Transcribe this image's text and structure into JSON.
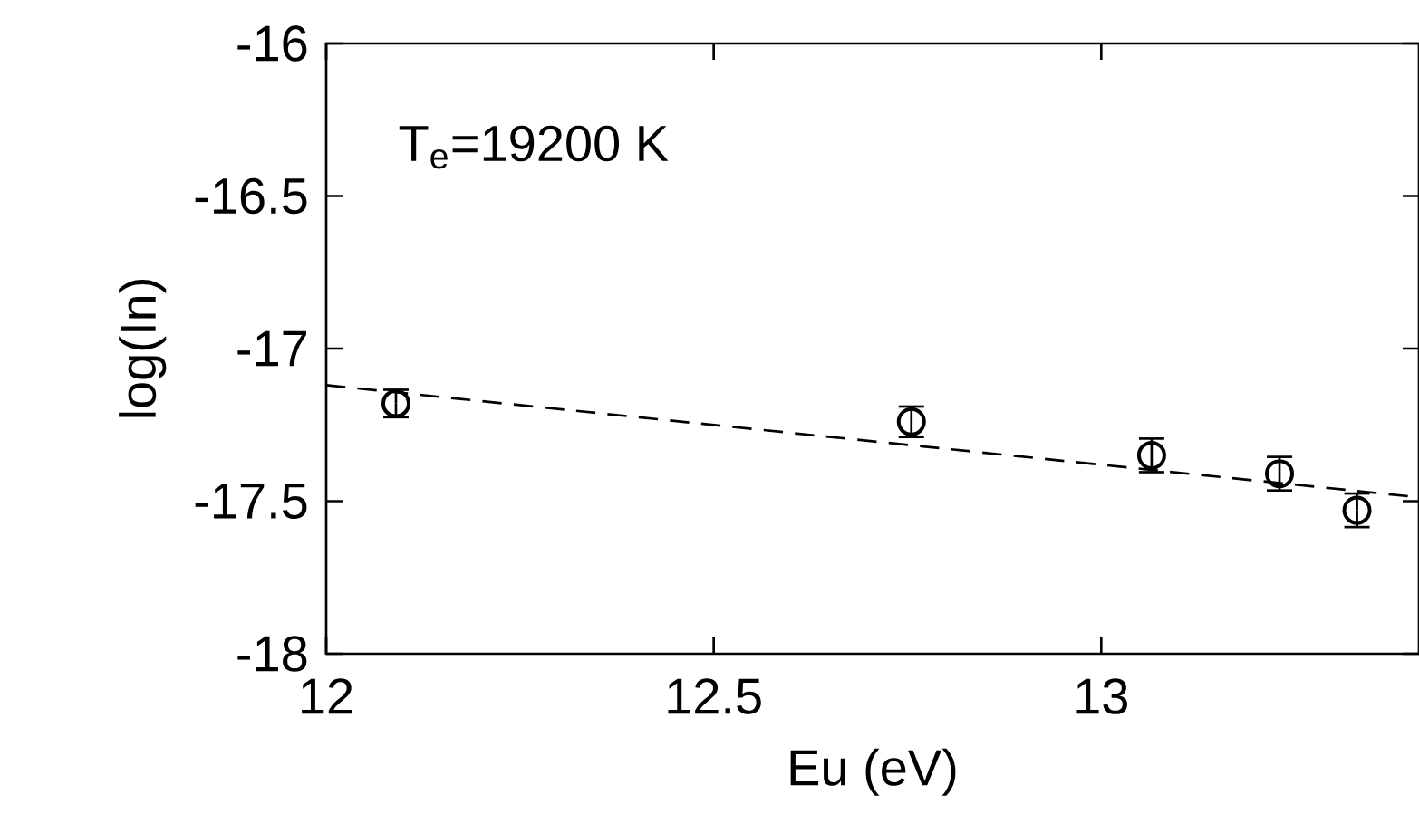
{
  "chart_data": {
    "type": "scatter",
    "xlabel": "Eu (eV)",
    "ylabel": "log(In)",
    "annotations": [
      "T$_{e}$=19200 K"
    ],
    "series": [
      {
        "color": "#000000",
        "marker": "circle",
        "x": [
          12.09,
          12.755,
          13.065,
          13.23,
          13.33
        ],
        "values": [
          -17.18,
          -17.24,
          -17.35,
          -17.41,
          -17.53
        ],
        "errors": [
          0.045,
          0.05,
          0.055,
          0.055,
          0.055
        ]
      },
      {
        "type": "line",
        "color": "#000000",
        "line_style": "dashed",
        "marker": "none",
        "x": [
          12,
          13.4
        ],
        "values": [
          -17.12,
          -17.485
        ]
      }
    ],
    "xlim": [
      12,
      13.41
    ],
    "ylim": [
      -18,
      -16
    ],
    "xticks": [
      12,
      12.5,
      13
    ],
    "yticks": [
      -16,
      -16.5,
      -17,
      -17.5,
      -18
    ],
    "grid": false
  }
}
